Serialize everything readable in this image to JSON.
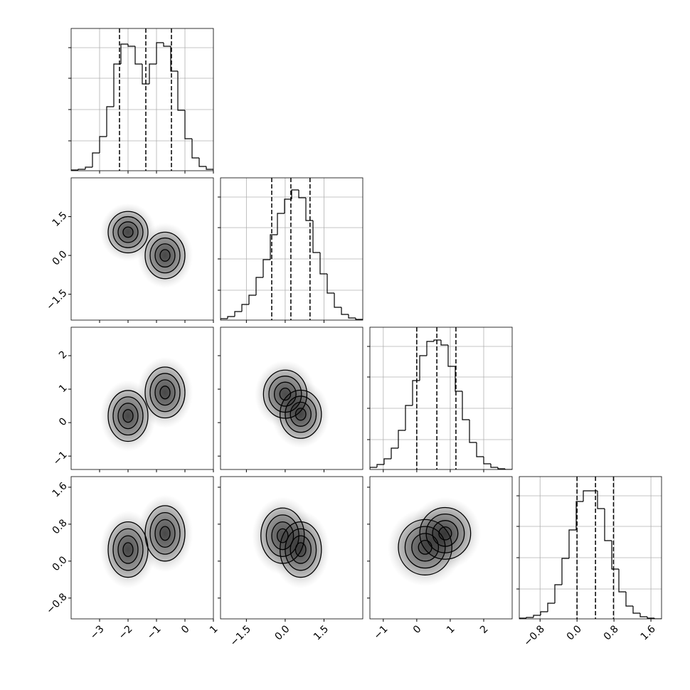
{
  "chart_data": {
    "type": "corner",
    "color": "#000000",
    "grid": true,
    "params": [
      {
        "lim": [
          -4,
          1
        ],
        "ticks": [
          {
            "value": -3,
            "label": "−3"
          },
          {
            "value": -2,
            "label": "−2"
          },
          {
            "value": -1,
            "label": "−1"
          },
          0,
          1
        ],
        "bins": [
          -4,
          -3.75,
          -3.5,
          -3.25,
          -3,
          -2.75,
          -2.5,
          -2.25,
          -2,
          -1.75,
          -1.5,
          -1.25,
          -1,
          -0.75,
          -0.5,
          -0.25,
          0,
          0.25,
          0.5,
          0.75,
          1
        ],
        "counts": [
          1,
          2,
          5,
          25,
          48,
          90,
          150,
          178,
          175,
          150,
          122,
          150,
          180,
          175,
          140,
          85,
          45,
          18,
          6,
          2
        ],
        "quantiles": [
          -2.3,
          -1.375,
          -0.475
        ]
      },
      {
        "lim": [
          -2.5,
          3.0
        ],
        "ticks": [
          {
            "value": -1.5,
            "label": "−1.5"
          },
          {
            "value": 0,
            "label": "0.0"
          },
          1.5
        ],
        "bins": [
          -2.5,
          -2.225,
          -1.95,
          -1.675,
          -1.4,
          -1.125,
          -0.85,
          -0.575,
          -0.3,
          -0.025,
          0.25,
          0.525,
          0.8,
          1.075,
          1.35,
          1.625,
          1.9,
          2.175,
          2.45,
          2.725,
          3.0
        ],
        "counts": [
          2,
          5,
          12,
          22,
          35,
          60,
          85,
          120,
          150,
          170,
          183,
          172,
          140,
          95,
          65,
          38,
          18,
          8,
          3,
          1
        ],
        "quantiles": [
          -0.52,
          0.22,
          0.96
        ]
      },
      {
        "lim": [
          -1.4,
          2.85
        ],
        "ticks": [
          {
            "value": -1,
            "label": "−1"
          },
          0,
          1,
          2
        ],
        "bins": [
          -1.4,
          -1.1875,
          -0.975,
          -0.7625,
          -0.55,
          -0.3375,
          -0.125,
          0.0875,
          0.3,
          0.5125,
          0.725,
          0.9375,
          1.15,
          1.3625,
          1.575,
          1.7875,
          2.0,
          2.2125,
          2.425,
          2.6375,
          2.85
        ],
        "counts": [
          3,
          7,
          15,
          30,
          55,
          90,
          125,
          160,
          180,
          182,
          175,
          145,
          110,
          70,
          38,
          18,
          8,
          3,
          1,
          0
        ],
        "quantiles": [
          0,
          0.6,
          1.17
        ]
      },
      {
        "lim": [
          -1.25,
          1.83
        ],
        "ticks": [
          {
            "value": -0.8,
            "label": "−0.8"
          },
          {
            "value": 0,
            "label": "0.0"
          },
          0.8,
          1.6
        ],
        "bins": [
          -1.25,
          -1.096,
          -0.942,
          -0.788,
          -0.634,
          -0.48,
          -0.326,
          -0.172,
          -0.018,
          0.136,
          0.29,
          0.444,
          0.598,
          0.752,
          0.906,
          1.06,
          1.214,
          1.368,
          1.522,
          1.676,
          1.83
        ],
        "counts": [
          1,
          2,
          5,
          10,
          22,
          48,
          85,
          125,
          165,
          180,
          180,
          155,
          110,
          70,
          38,
          18,
          8,
          3,
          1,
          0
        ],
        "quantiles": [
          0,
          0.4,
          0.79
        ]
      }
    ],
    "hist_ylim": [
      0,
      200
    ],
    "hist_yticks": [
      42,
      86,
      130,
      173
    ],
    "levels": [
      0.5,
      1.0,
      1.5,
      2.0
    ],
    "pairs": [
      {
        "x": 0,
        "y": 1,
        "blobs": [
          {
            "x": -2.0,
            "y": 0.9,
            "sx": 0.35,
            "sy": 0.4
          },
          {
            "x": -0.7,
            "y": 0.0,
            "sx": 0.35,
            "sy": 0.45
          }
        ]
      },
      {
        "x": 0,
        "y": 2,
        "blobs": [
          {
            "x": -2.0,
            "y": 0.2,
            "sx": 0.35,
            "sy": 0.38
          },
          {
            "x": -0.7,
            "y": 0.9,
            "sx": 0.35,
            "sy": 0.38
          }
        ]
      },
      {
        "x": 1,
        "y": 2,
        "blobs": [
          {
            "x": 0.0,
            "y": 0.85,
            "sx": 0.42,
            "sy": 0.36
          },
          {
            "x": 0.6,
            "y": 0.25,
            "sx": 0.4,
            "sy": 0.36
          }
        ]
      },
      {
        "x": 0,
        "y": 3,
        "blobs": [
          {
            "x": -2.0,
            "y": 0.25,
            "sx": 0.35,
            "sy": 0.3
          },
          {
            "x": -0.7,
            "y": 0.6,
            "sx": 0.35,
            "sy": 0.3
          }
        ]
      },
      {
        "x": 1,
        "y": 3,
        "blobs": [
          {
            "x": -0.1,
            "y": 0.55,
            "sx": 0.42,
            "sy": 0.3
          },
          {
            "x": 0.6,
            "y": 0.25,
            "sx": 0.4,
            "sy": 0.3
          }
        ]
      },
      {
        "x": 2,
        "y": 3,
        "blobs": [
          {
            "x": 0.25,
            "y": 0.3,
            "sx": 0.4,
            "sy": 0.3
          },
          {
            "x": 0.85,
            "y": 0.6,
            "sx": 0.38,
            "sy": 0.28
          }
        ]
      }
    ]
  }
}
